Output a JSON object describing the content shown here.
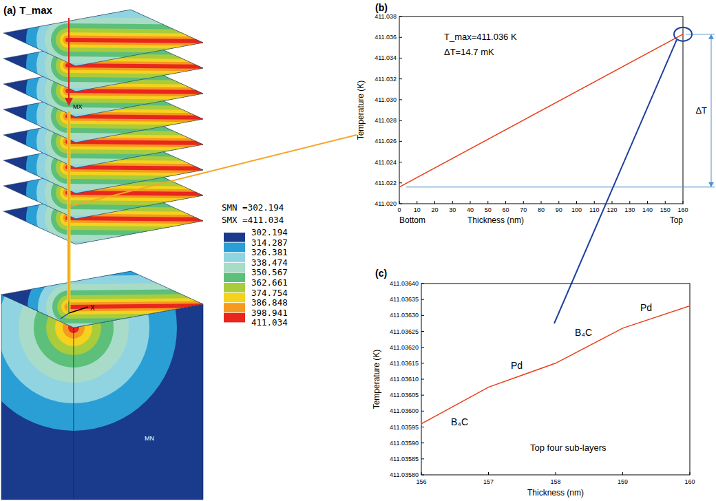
{
  "diagram": {
    "label": "(a)",
    "arrow_label": "T_max",
    "max_marker": "MX",
    "min_marker": "MN",
    "axis_label": "X",
    "legend": {
      "min_label": "SMN =302.194",
      "max_label": "SMX =411.034",
      "levels": [
        302.194,
        314.287,
        326.381,
        338.474,
        350.567,
        362.661,
        374.754,
        386.848,
        398.941,
        411.034
      ],
      "colors": [
        "#1a3a8c",
        "#2a9fd6",
        "#8fd4e0",
        "#a8dcc8",
        "#5cbf7a",
        "#a8cc3c",
        "#f5d21e",
        "#f59a1e",
        "#e8261e"
      ]
    }
  },
  "chart_data": [
    {
      "type": "line",
      "label": "(b)",
      "x_label": "Thickness (nm)",
      "y_label": "Temperature (K)",
      "annotations": [
        "T_max=411.036 K",
        "ΔT=14.7 mK",
        "ΔT",
        "Bottom",
        "Top"
      ],
      "x": [
        0,
        160
      ],
      "series": [
        {
          "color": "#e8401a",
          "values": [
            411.0216,
            411.0363
          ]
        }
      ],
      "xlim": [
        0,
        160
      ],
      "xticks": [
        0,
        10,
        20,
        30,
        40,
        50,
        60,
        70,
        80,
        90,
        100,
        110,
        120,
        130,
        140,
        150,
        160
      ],
      "ylim": [
        411.02,
        411.038
      ],
      "yticks": [
        {
          "value": 411.02,
          "label": "411.020"
        },
        411.022,
        411.024,
        411.026,
        411.028,
        {
          "value": 411.03,
          "label": "411.030"
        },
        411.032,
        411.034,
        411.036,
        411.038
      ],
      "grid": false
    },
    {
      "type": "line",
      "label": "(c)",
      "x_label": "Thickness (nm)",
      "y_label": "Temperature (K)",
      "annotations": [
        "B₄C",
        "Pd",
        "B₄C",
        "Pd",
        "Top four sub-layers"
      ],
      "x": [
        156,
        157,
        158,
        159,
        160
      ],
      "series": [
        {
          "color": "#e8401a",
          "values": [
            411.03596,
            411.036075,
            411.03615,
            411.03626,
            411.03633
          ]
        }
      ],
      "xlim": [
        156,
        160
      ],
      "xticks": [
        156,
        157,
        158,
        159,
        160
      ],
      "ylim": [
        411.0358,
        411.0364
      ],
      "yticks": [
        {
          "value": 411.0358,
          "label": "411.03580"
        },
        411.03585,
        {
          "value": 411.0359,
          "label": "411.03590"
        },
        411.03595,
        {
          "value": 411.036,
          "label": "411.03600"
        },
        411.03605,
        {
          "value": 411.0361,
          "label": "411.03610"
        },
        411.03615,
        {
          "value": 411.0362,
          "label": "411.03620"
        },
        411.03625,
        {
          "value": 411.0363,
          "label": "411.03630"
        },
        411.03635,
        {
          "value": 411.0364,
          "label": "411.03640"
        }
      ],
      "grid": false
    }
  ]
}
